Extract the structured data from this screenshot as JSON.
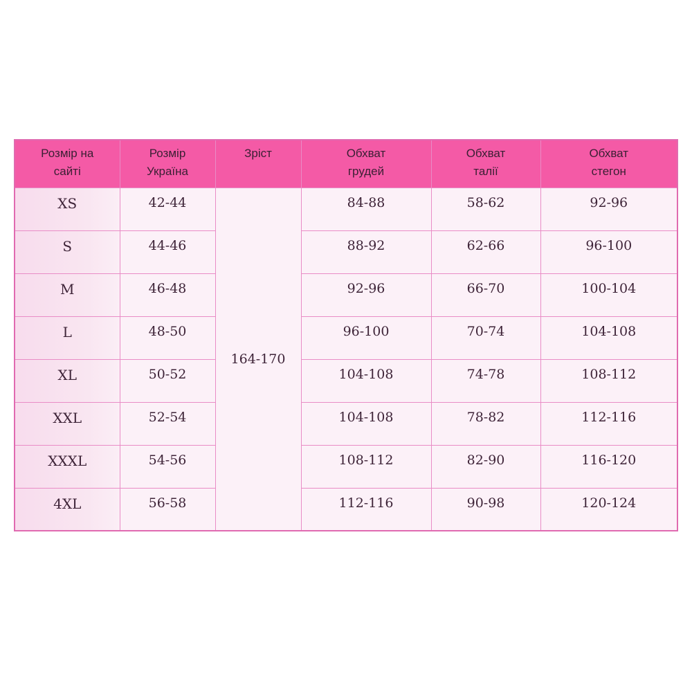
{
  "colors": {
    "header_bg": "#f45aa6",
    "cell_bg": "#fcf1f8",
    "first_col_bg": "#f8dced",
    "border": "#e98cc6",
    "text": "#3e2438"
  },
  "headers": [
    [
      "Розмір на",
      "сайті"
    ],
    [
      "Розмір",
      "Україна"
    ],
    [
      "Зріст",
      ""
    ],
    [
      "Обхват",
      "грудей"
    ],
    [
      "Обхват",
      "талії"
    ],
    [
      "Обхват",
      "стегон"
    ]
  ],
  "height_value": "164-170",
  "rows": [
    {
      "site": "XS",
      "ua": "42-44",
      "chest": "84-88",
      "waist": "58-62",
      "hips": "92-96"
    },
    {
      "site": "S",
      "ua": "44-46",
      "chest": "88-92",
      "waist": "62-66",
      "hips": "96-100"
    },
    {
      "site": "M",
      "ua": "46-48",
      "chest": "92-96",
      "waist": "66-70",
      "hips": "100-104"
    },
    {
      "site": "L",
      "ua": "48-50",
      "chest": "96-100",
      "waist": "70-74",
      "hips": "104-108"
    },
    {
      "site": "XL",
      "ua": "50-52",
      "chest": "104-108",
      "waist": "74-78",
      "hips": "108-112"
    },
    {
      "site": "XXL",
      "ua": "52-54",
      "chest": "104-108",
      "waist": "78-82",
      "hips": "112-116"
    },
    {
      "site": "XXXL",
      "ua": "54-56",
      "chest": "108-112",
      "waist": "82-90",
      "hips": "116-120"
    },
    {
      "site": "4XL",
      "ua": "56-58",
      "chest": "112-116",
      "waist": "90-98",
      "hips": "120-124"
    }
  ]
}
